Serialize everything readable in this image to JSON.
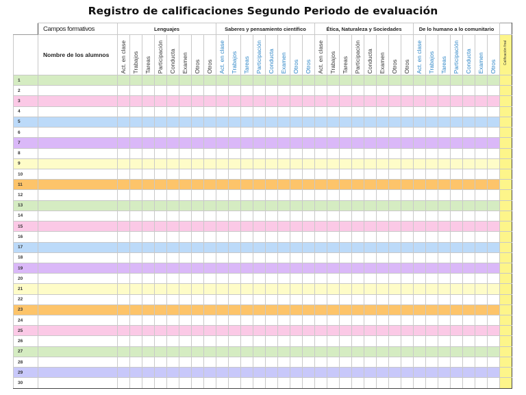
{
  "title": "Registro de calificaciones Segundo Periodo de evaluación",
  "header": {
    "campos_label": "Campos formativos",
    "names_label": "Nombre de los alumnos",
    "final_label": "Calificación final",
    "groups": [
      {
        "label": "Lenguajes",
        "text_color": "#333333",
        "columns": [
          "Act. en clase",
          "Trabajos",
          "Tareas",
          "Participación",
          "Conducta",
          "Examen",
          "Otros",
          "Otros"
        ]
      },
      {
        "label": "Saberes y pensamiento científico",
        "text_color": "#2b84c6",
        "columns": [
          "Act. en clase",
          "Trabajos",
          "Tareas",
          "Participación",
          "Conducta",
          "Examen",
          "Otros",
          "Otros"
        ]
      },
      {
        "label": "Ética, Naturaleza y Sociedades",
        "text_color": "#333333",
        "columns": [
          "Act. en clase",
          "Trabajos",
          "Tareas",
          "Participación",
          "Conducta",
          "Examen",
          "Otros",
          "Otros"
        ]
      },
      {
        "label": "De lo humano a lo comunitario",
        "text_color": "#2b84c6",
        "columns": [
          "Act. en clase",
          "Trabajos",
          "Tareas",
          "Participación",
          "Conducta",
          "Examen",
          "Otros"
        ]
      }
    ]
  },
  "colors": {
    "green": "#d5ecc2",
    "pink": "#fbc9e6",
    "blue": "#bcdaf9",
    "purple": "#dab8f8",
    "yellow": "#fefcc8",
    "orange": "#fdc46a",
    "lavender": "#c8c8fa",
    "white": "#ffffff",
    "final": "#fdf58a"
  },
  "rows": [
    {
      "n": "1",
      "color": "green"
    },
    {
      "n": "2",
      "color": "white"
    },
    {
      "n": "3",
      "color": "pink"
    },
    {
      "n": "4",
      "color": "white"
    },
    {
      "n": "5",
      "color": "blue"
    },
    {
      "n": "6",
      "color": "white"
    },
    {
      "n": "7",
      "color": "purple"
    },
    {
      "n": "8",
      "color": "white"
    },
    {
      "n": "9",
      "color": "yellow"
    },
    {
      "n": "10",
      "color": "white"
    },
    {
      "n": "11",
      "color": "orange"
    },
    {
      "n": "12",
      "color": "white"
    },
    {
      "n": "13",
      "color": "green"
    },
    {
      "n": "14",
      "color": "white"
    },
    {
      "n": "15",
      "color": "pink"
    },
    {
      "n": "16",
      "color": "white"
    },
    {
      "n": "17",
      "color": "blue"
    },
    {
      "n": "18",
      "color": "white"
    },
    {
      "n": "19",
      "color": "purple"
    },
    {
      "n": "20",
      "color": "white"
    },
    {
      "n": "21",
      "color": "yellow"
    },
    {
      "n": "22",
      "color": "white"
    },
    {
      "n": "23",
      "color": "orange"
    },
    {
      "n": "24",
      "color": "white"
    },
    {
      "n": "25",
      "color": "pink"
    },
    {
      "n": "26",
      "color": "white"
    },
    {
      "n": "27",
      "color": "green"
    },
    {
      "n": "28",
      "color": "white"
    },
    {
      "n": "29",
      "color": "lavender"
    },
    {
      "n": "30",
      "color": "white"
    }
  ]
}
